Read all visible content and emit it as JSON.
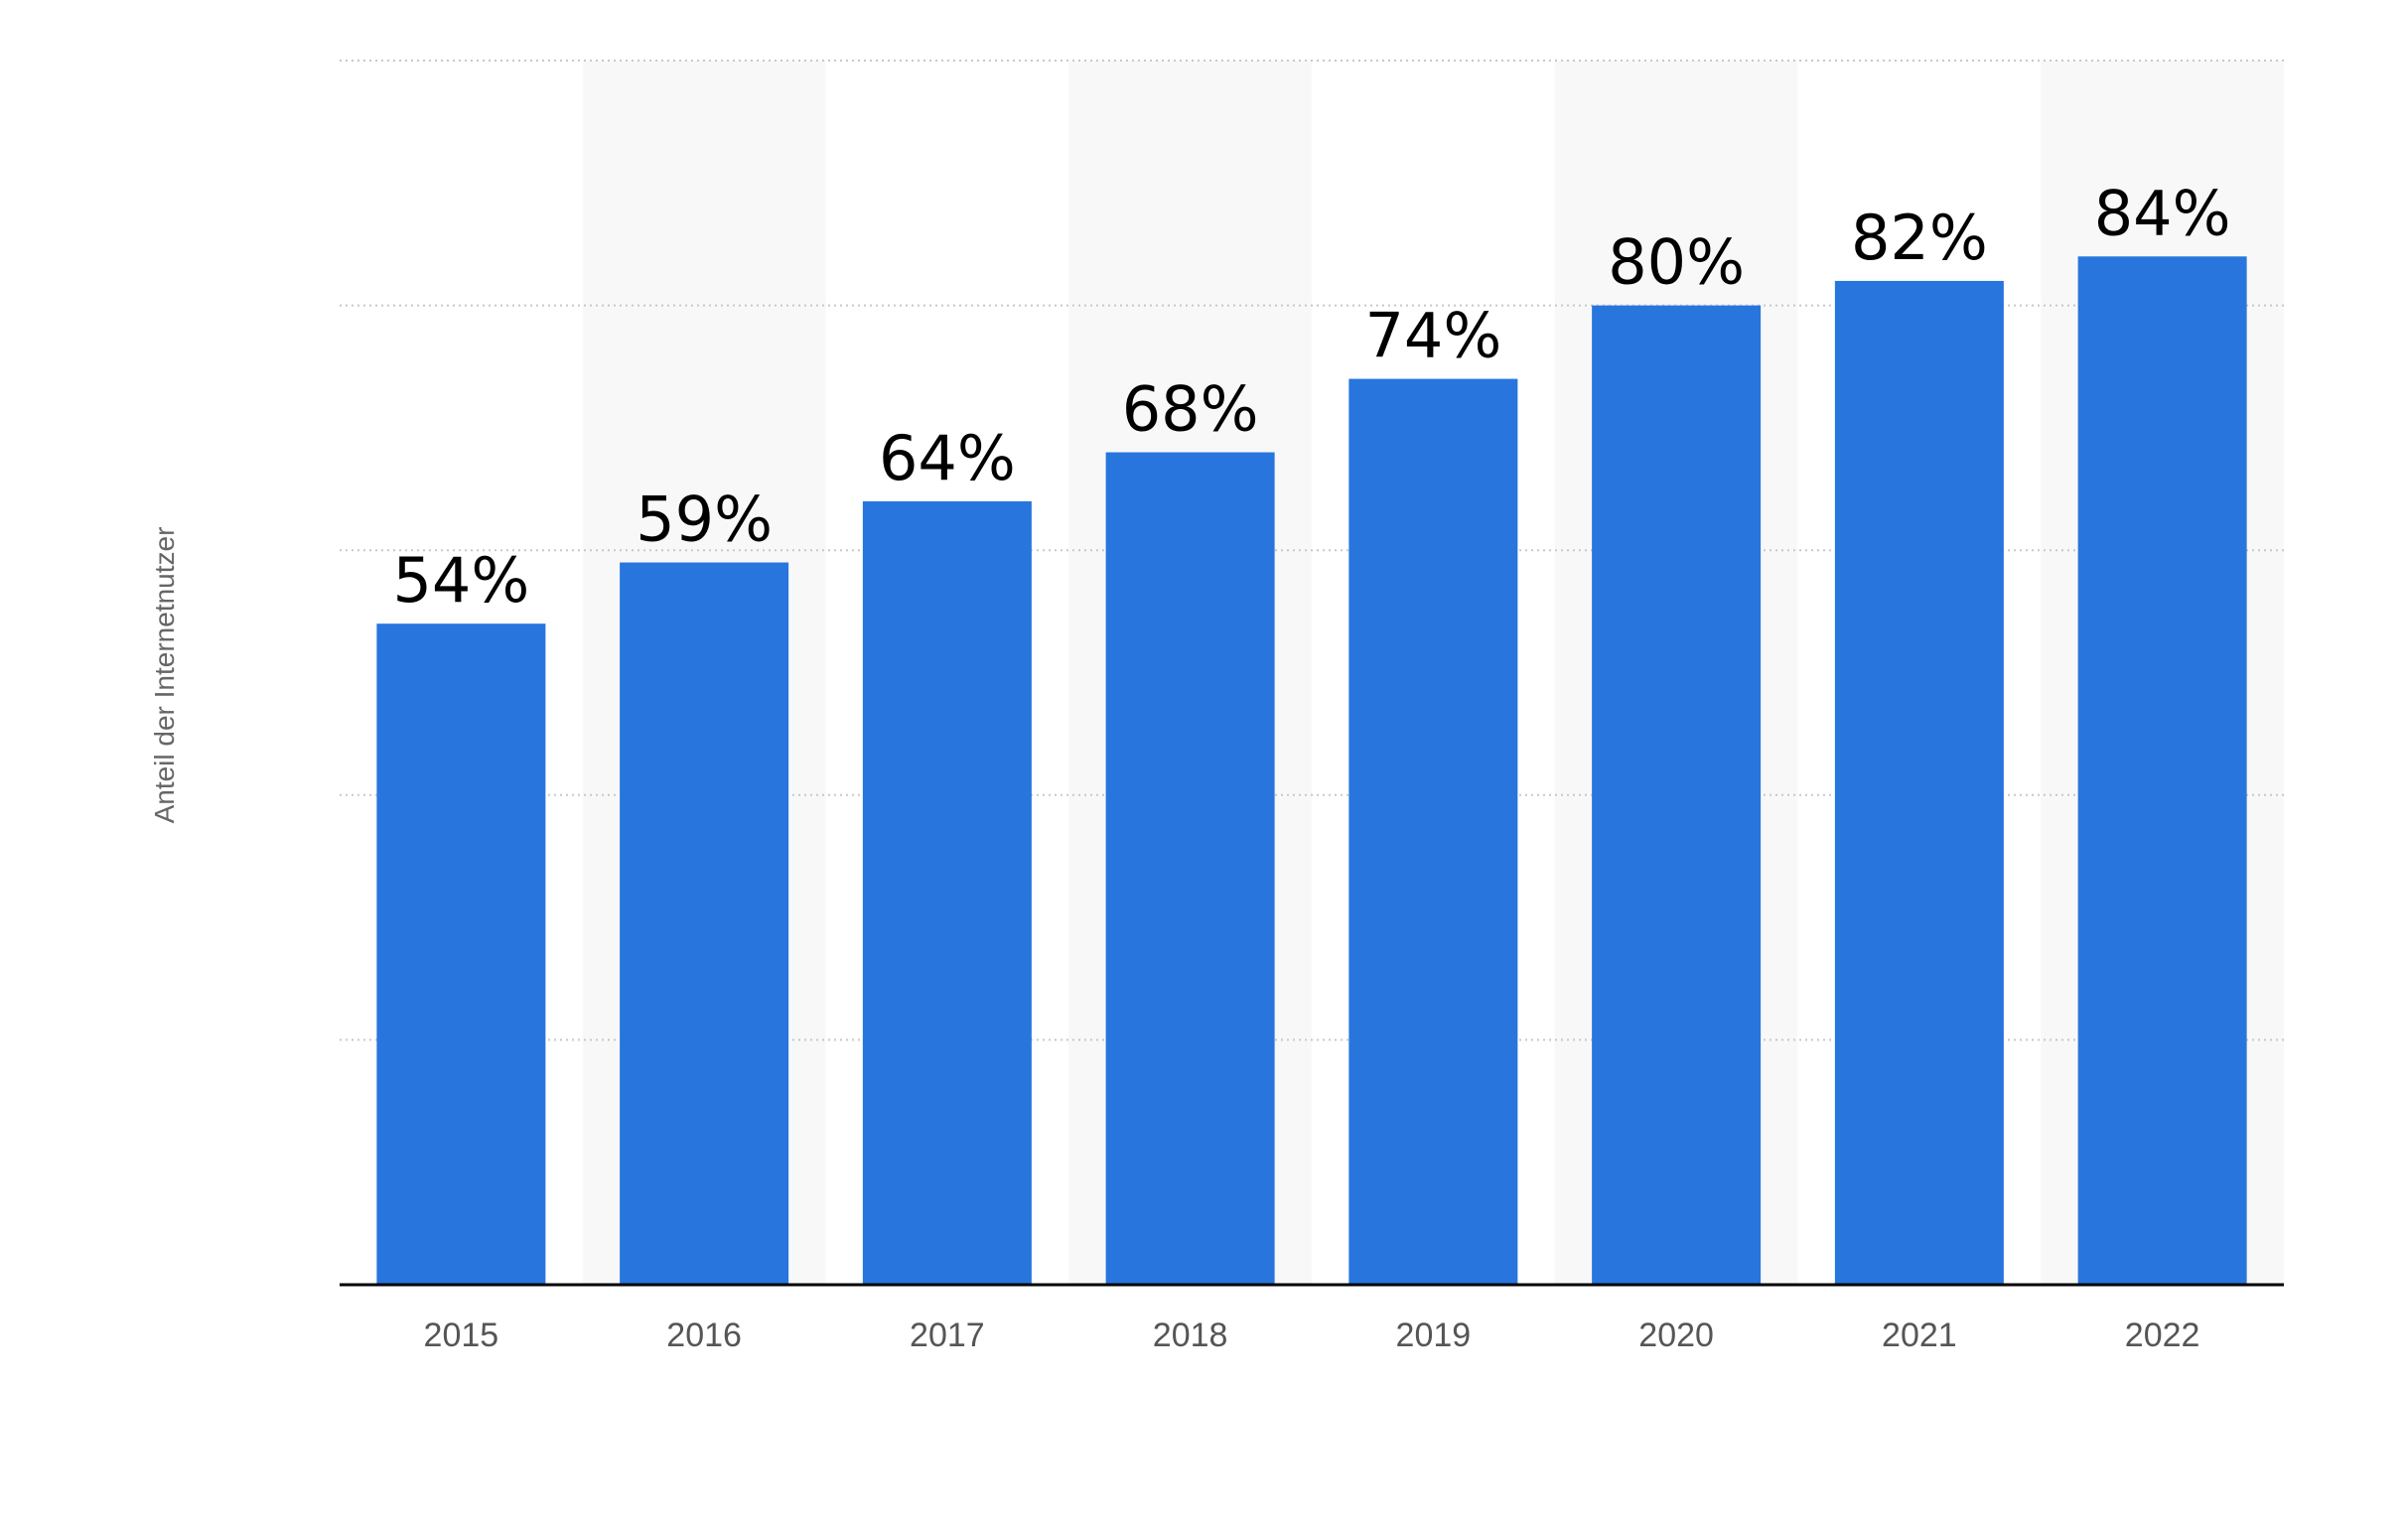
{
  "chart_data": {
    "type": "bar",
    "categories": [
      "2015",
      "2016",
      "2017",
      "2018",
      "2019",
      "2020",
      "2021",
      "2022"
    ],
    "values": [
      54,
      59,
      64,
      68,
      74,
      80,
      82,
      84
    ],
    "data_labels": [
      "54%",
      "59%",
      "64%",
      "68%",
      "74%",
      "80%",
      "82%",
      "84%"
    ],
    "title": "",
    "xlabel": "",
    "ylabel": "Anteil der Internetnutzer",
    "ylim": [
      0,
      100
    ],
    "y_gridlines": [
      20,
      40,
      60,
      80,
      100
    ],
    "grid": true,
    "y_tick_labels_shown": false,
    "legend": "none",
    "colors": {
      "bar": "#2876DD",
      "band": "#F8F8F8",
      "grid": "#C8C8C8",
      "axis": "#000000",
      "tick_text": "#555555",
      "ylabel_text": "#666666",
      "data_label_text": "#000000"
    }
  }
}
